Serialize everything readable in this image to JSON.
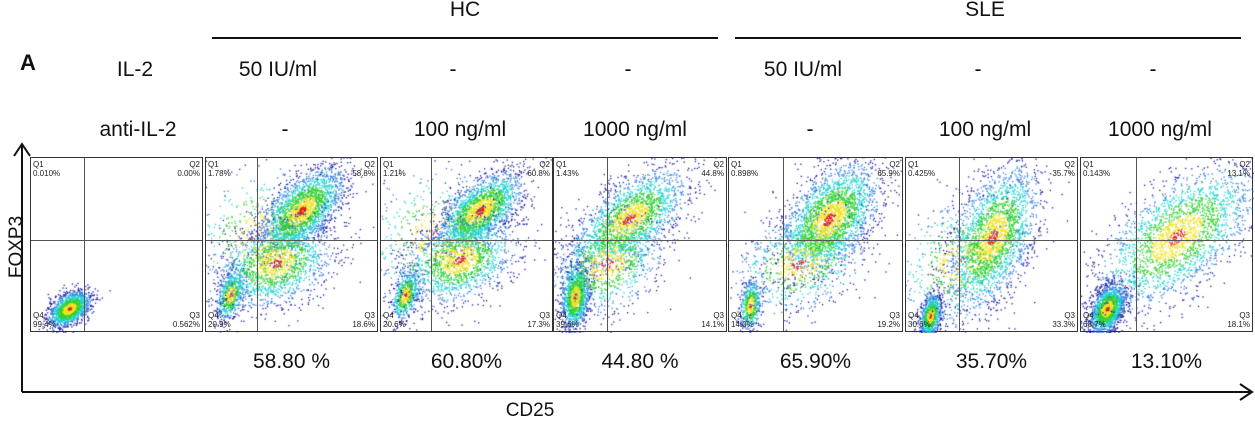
{
  "panel_label": "A",
  "groups": [
    {
      "label": "HC"
    },
    {
      "label": "SLE"
    }
  ],
  "rows": {
    "il2": {
      "label": "IL-2",
      "values": [
        "50 IU/ml",
        "-",
        "-",
        "50 IU/ml",
        "-",
        "-"
      ]
    },
    "anti_il2": {
      "label": "anti-IL-2",
      "values": [
        "-",
        "100 ng/ml",
        "1000 ng/ml",
        "-",
        "100 ng/ml",
        "1000 ng/ml"
      ]
    }
  },
  "chart_data": {
    "type": "scatter",
    "xlabel": "CD25",
    "ylabel": "FOXP3",
    "panels": [
      {
        "q1": "0.010%",
        "q2": "0.00%",
        "q3": "0.562%",
        "q4": "99.4%",
        "summary": ""
      },
      {
        "q1": "1.78%",
        "q2": "58.8%",
        "q3": "18.6%",
        "q4": "20.9%",
        "summary": "58.80 %"
      },
      {
        "q1": "1.21%",
        "q2": "60.8%",
        "q3": "17.3%",
        "q4": "20.6%",
        "summary": "60.80%"
      },
      {
        "q1": "1.43%",
        "q2": "44.8%",
        "q3": "14.1%",
        "q4": "39.6%",
        "summary": "44.80 %"
      },
      {
        "q1": "0.898%",
        "q2": "65.9%",
        "q3": "19.2%",
        "q4": "14.0%",
        "summary": "65.90%"
      },
      {
        "q1": "0.425%",
        "q2": "35.7%",
        "q3": "33.3%",
        "q4": "30.6%",
        "summary": "35.70%"
      },
      {
        "q1": "0.143%",
        "q2": "13.1%",
        "q3": "18.1%",
        "q4": "68.7%",
        "summary": "13.10%"
      }
    ],
    "quadrant_names": [
      "Q1",
      "Q2",
      "Q3",
      "Q4"
    ],
    "density_colors": [
      "#1a1aa8",
      "#2f7fe0",
      "#20d0d0",
      "#30d030",
      "#f0e020",
      "#e02010"
    ]
  }
}
